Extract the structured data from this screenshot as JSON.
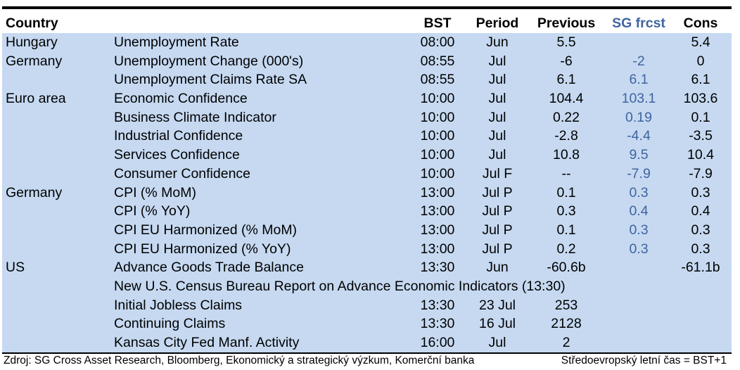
{
  "table": {
    "headers": {
      "country": "Country",
      "bst": "BST",
      "period": "Period",
      "previous": "Previous",
      "sg_forecast": "SG frcst",
      "consensus": "Cons"
    },
    "rows": [
      {
        "country": "Hungary",
        "indicator": "Unemployment Rate",
        "bst": "08:00",
        "period": "Jun",
        "previous": "5.5",
        "consensus": "5.4"
      },
      {
        "country": "Germany",
        "indicator": "Unemployment Change (000's)",
        "bst": "08:55",
        "period": "Jul",
        "previous": "-6",
        "sg_forecast": "-2",
        "consensus": "0"
      },
      {
        "indicator": "Unemployment Claims Rate SA",
        "bst": "08:55",
        "period": "Jul",
        "previous": "6.1",
        "sg_forecast": "6.1",
        "consensus": "6.1"
      },
      {
        "country": "Euro area",
        "indicator": "Economic Confidence",
        "bst": "10:00",
        "period": "Jul",
        "previous": "104.4",
        "sg_forecast": "103.1",
        "consensus": "103.6"
      },
      {
        "indicator": "Business Climate Indicator",
        "bst": "10:00",
        "period": "Jul",
        "previous": "0.22",
        "sg_forecast": "0.19",
        "consensus": "0.1"
      },
      {
        "indicator": "Industrial Confidence",
        "bst": "10:00",
        "period": "Jul",
        "previous": "-2.8",
        "sg_forecast": "-4.4",
        "consensus": "-3.5"
      },
      {
        "indicator": "Services Confidence",
        "bst": "10:00",
        "period": "Jul",
        "previous": "10.8",
        "sg_forecast": "9.5",
        "consensus": "10.4"
      },
      {
        "indicator": "Consumer Confidence",
        "bst": "10:00",
        "period": "Jul F",
        "previous": "--",
        "sg_forecast": "-7.9",
        "consensus": "-7.9"
      },
      {
        "country": "Germany",
        "indicator": "CPI (% MoM)",
        "bst": "13:00",
        "period": "Jul P",
        "previous": "0.1",
        "sg_forecast": "0.3",
        "consensus": "0.3"
      },
      {
        "indicator": "CPI (% YoY)",
        "bst": "13:00",
        "period": "Jul P",
        "previous": "0.3",
        "sg_forecast": "0.4",
        "consensus": "0.4"
      },
      {
        "indicator": "CPI EU Harmonized (% MoM)",
        "bst": "13:00",
        "period": "Jul P",
        "previous": "0.1",
        "sg_forecast": "0.3",
        "consensus": "0.3"
      },
      {
        "indicator": "CPI EU Harmonized (% YoY)",
        "bst": "13:00",
        "period": "Jul P",
        "previous": "0.2",
        "sg_forecast": "0.3",
        "consensus": "0.3"
      },
      {
        "country": "US",
        "indicator": "Advance Goods Trade Balance",
        "bst": "13:30",
        "period": "Jun",
        "previous": "-60.6b",
        "consensus": "-61.1b"
      },
      {
        "indicator": "New U.S. Census Bureau Report on Advance Economic Indicators (13:30)"
      },
      {
        "indicator": "Initial Jobless Claims",
        "bst": "13:30",
        "period": "23 Jul",
        "previous": "253"
      },
      {
        "indicator": "Continuing Claims",
        "bst": "13:30",
        "period": "16 Jul",
        "previous": "2128"
      },
      {
        "indicator": "Kansas City Fed Manf. Activity",
        "bst": "16:00",
        "period": "Jul",
        "previous": "2"
      }
    ]
  },
  "footer": {
    "source": "Zdroj: SG Cross Asset Research, Bloomberg, Ekonomický a strategický výzkum, Komerční banka",
    "timezone_note": "Středoevropský letní čas = BST+1"
  },
  "colors": {
    "band": "#c6d9f1",
    "sg_forecast": "#40649f",
    "rule": "#000000"
  }
}
